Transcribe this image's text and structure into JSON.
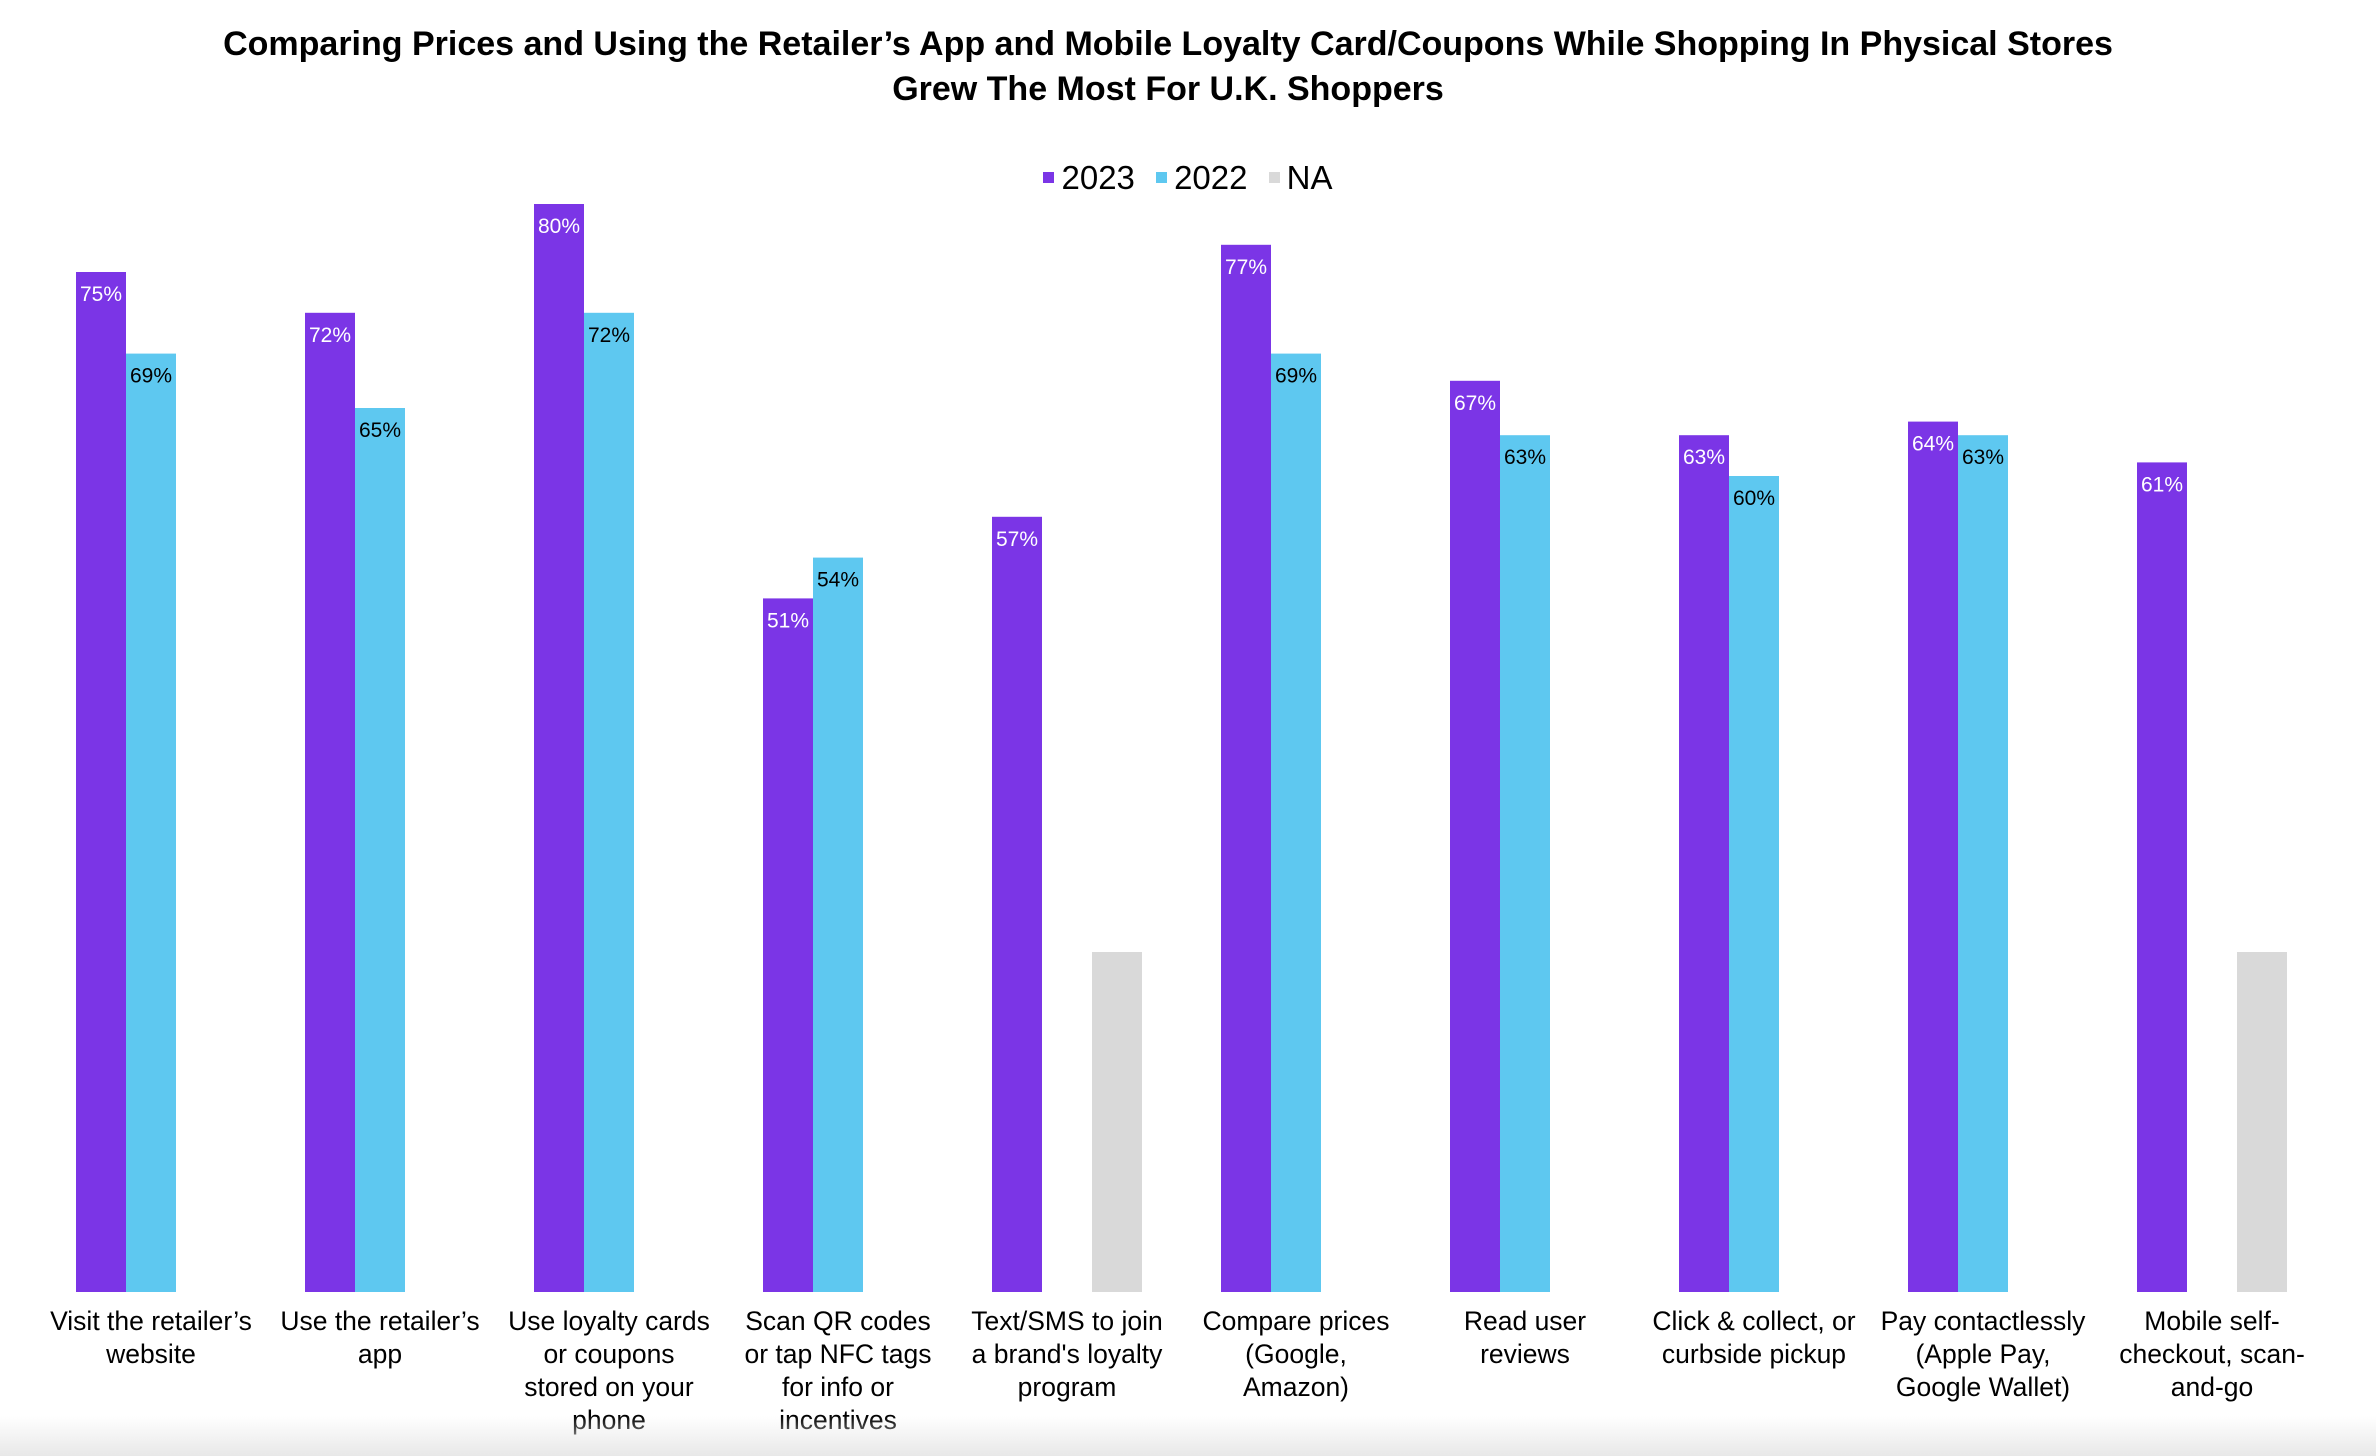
{
  "chart_data": {
    "type": "bar",
    "title": [
      "Comparing Prices and Using the Retailer’s App and Mobile Loyalty Card/Coupons While Shopping In Physical Stores",
      "Grew The Most For U.K. Shoppers"
    ],
    "legend_position": "top-center",
    "grid": false,
    "ylim": [
      0,
      100
    ],
    "categories": [
      [
        "Visit the retailer’s",
        "website"
      ],
      [
        "Use the retailer’s",
        "app"
      ],
      [
        "Use loyalty cards",
        "or coupons",
        "stored on your",
        "phone"
      ],
      [
        "Scan QR codes",
        "or tap NFC tags",
        "for info or",
        "incentives"
      ],
      [
        "Text/SMS to join",
        "a brand's loyalty",
        "program"
      ],
      [
        "Compare prices",
        "(Google,",
        "Amazon)"
      ],
      [
        "Read user",
        "reviews"
      ],
      [
        "Click & collect, or",
        "curbside pickup"
      ],
      [
        "Pay contactlessly",
        "(Apple Pay,",
        "Google Wallet)"
      ],
      [
        "Mobile self-",
        "checkout, scan-",
        "and-go"
      ]
    ],
    "series": [
      {
        "name": "2023",
        "color": "#7b35e6",
        "label_color": "#ffffff",
        "values": [
          75,
          72,
          80,
          51,
          57,
          77,
          67,
          63,
          64,
          61
        ],
        "labels": [
          "75%",
          "72%",
          "80%",
          "51%",
          "57%",
          "77%",
          "67%",
          "63%",
          "64%",
          "61%"
        ]
      },
      {
        "name": "2022",
        "color": "#5ec8f0",
        "label_color": "#000000",
        "values": [
          69,
          65,
          72,
          54,
          null,
          69,
          63,
          60,
          63,
          null
        ],
        "labels": [
          "69%",
          "65%",
          "72%",
          "54%",
          "",
          "69%",
          "63%",
          "60%",
          "63%",
          ""
        ]
      },
      {
        "name": "NA",
        "color": "#d9d9d9",
        "label_color": "#000000",
        "values": [
          null,
          null,
          null,
          null,
          25,
          null,
          null,
          null,
          null,
          25
        ],
        "labels": [
          "",
          "",
          "",
          "",
          "",
          "",
          "",
          "",
          "",
          ""
        ]
      }
    ]
  }
}
